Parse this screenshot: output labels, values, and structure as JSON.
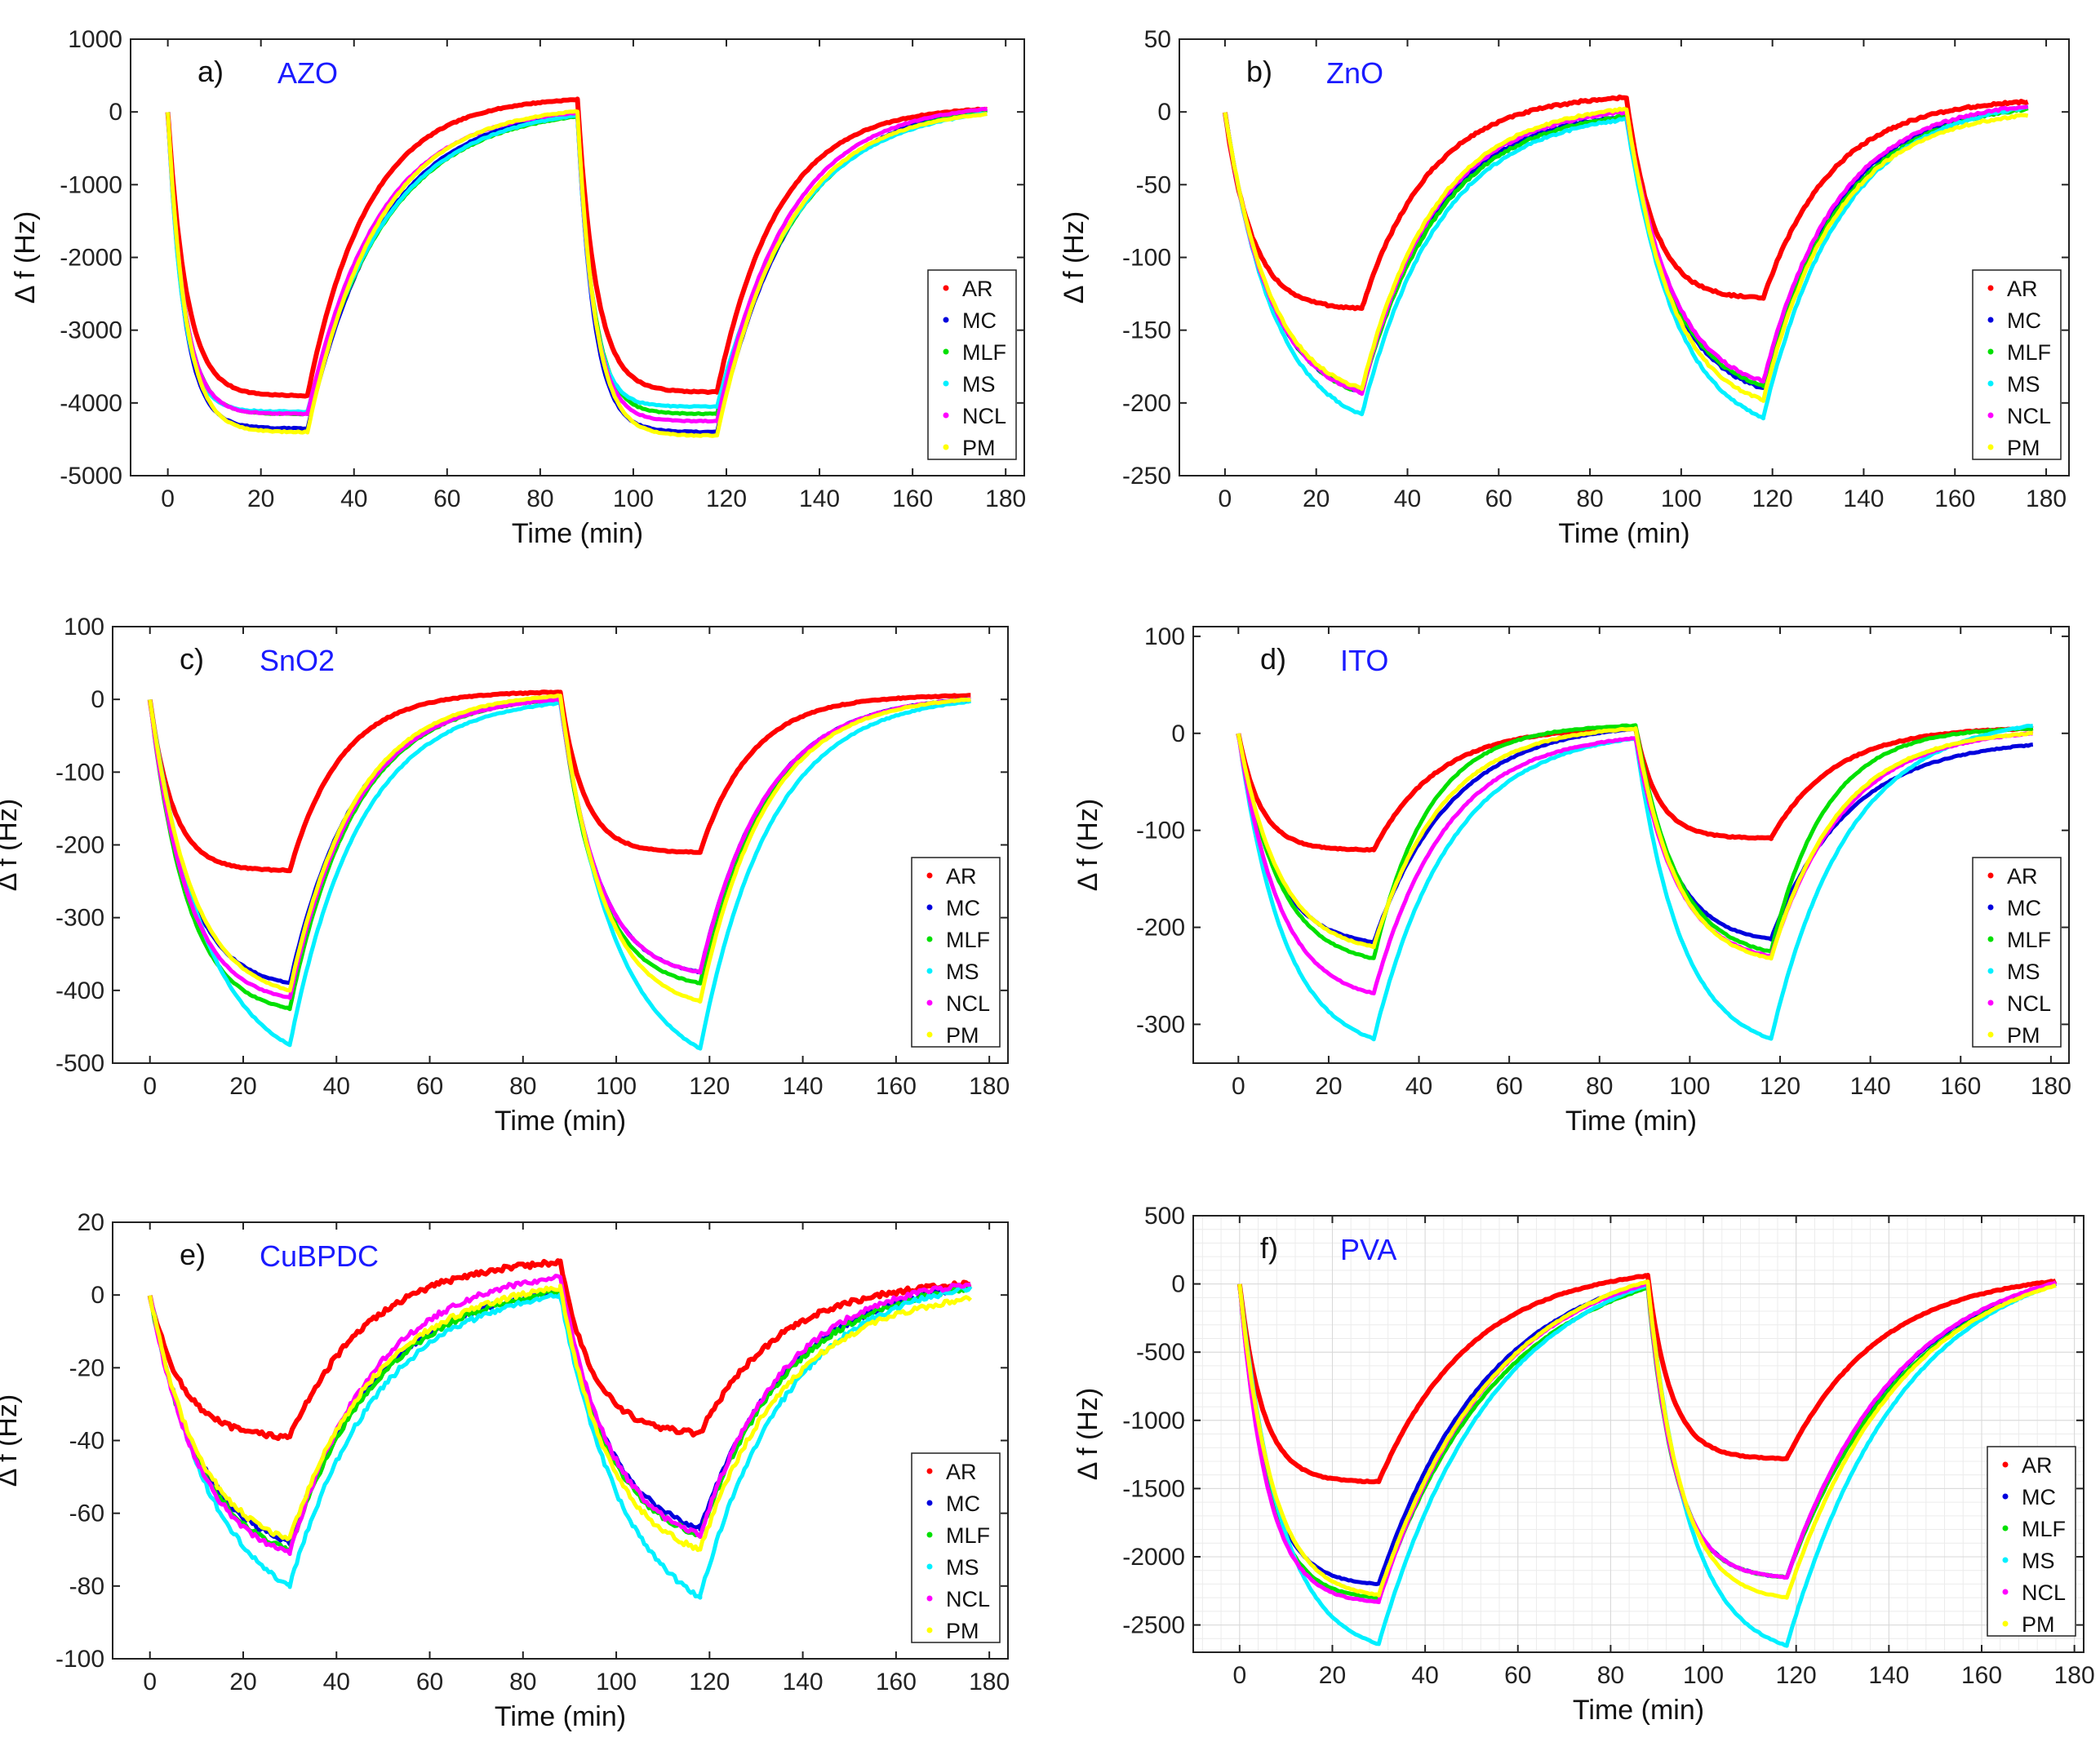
{
  "colors": {
    "AR": "#ff0000",
    "MC": "#0000dd",
    "MLF": "#00e000",
    "MS": "#00f0ff",
    "NCL": "#ff00ff",
    "PM": "#ffff00",
    "label": "#1a1aff"
  },
  "chart_data": [
    {
      "type": "line",
      "panel": "a)",
      "material": "AZO",
      "xlabel": "Time (min)",
      "ylabel": "Δ f (Hz)",
      "xlim": [
        -8,
        184
      ],
      "ylim": [
        -5000,
        1000
      ],
      "xticks": [
        0,
        20,
        40,
        60,
        80,
        100,
        120,
        140,
        160,
        180
      ],
      "yticks": [
        1000,
        0,
        -1000,
        -2000,
        -3000,
        -4000,
        -5000
      ],
      "grid": false,
      "legend": [
        "AR",
        "MC",
        "MLF",
        "MS",
        "NCL",
        "PM"
      ],
      "legend_position": "right",
      "cycles": {
        "exposure_on": [
          0,
          88
        ],
        "exposure_off": [
          30,
          118
        ],
        "cycle_end": [
          88,
          176
        ]
      },
      "series": [
        {
          "name": "AR",
          "plateau": [
            -3900,
            -3850
          ],
          "recovery_end": [
            170,
            40
          ],
          "tau_ads": 4,
          "tau_des": 13
        },
        {
          "name": "MC",
          "plateau": [
            -4350,
            -4400
          ],
          "recovery_end": [
            -30,
            20
          ],
          "tau_ads": 3.5,
          "tau_des": 16
        },
        {
          "name": "MLF",
          "plateau": [
            -4150,
            -4150
          ],
          "recovery_end": [
            -60,
            10
          ],
          "tau_ads": 3.5,
          "tau_des": 17
        },
        {
          "name": "MS",
          "plateau": [
            -4120,
            -4050
          ],
          "recovery_end": [
            -50,
            -20
          ],
          "tau_ads": 3.2,
          "tau_des": 17
        },
        {
          "name": "NCL",
          "plateau": [
            -4150,
            -4250
          ],
          "recovery_end": [
            -10,
            40
          ],
          "tau_ads": 3.5,
          "tau_des": 15
        },
        {
          "name": "PM",
          "plateau": [
            -4400,
            -4450
          ],
          "recovery_end": [
            10,
            -30
          ],
          "tau_ads": 3.8,
          "tau_des": 15
        }
      ]
    },
    {
      "type": "line",
      "panel": "b)",
      "material": "ZnO",
      "xlabel": "Time (min)",
      "ylabel": "Δ f (Hz)",
      "xlim": [
        -10,
        185
      ],
      "ylim": [
        -250,
        50
      ],
      "xticks": [
        0,
        20,
        40,
        60,
        80,
        100,
        120,
        140,
        160,
        180
      ],
      "yticks": [
        50,
        0,
        -50,
        -100,
        -150,
        -200,
        -250
      ],
      "grid": false,
      "legend": [
        "AR",
        "MC",
        "MLF",
        "MS",
        "NCL",
        "PM"
      ],
      "legend_position": "right",
      "cycles": {
        "exposure_on": [
          0,
          88
        ],
        "exposure_off": [
          30,
          118
        ],
        "cycle_end": [
          88,
          176
        ]
      },
      "series": [
        {
          "name": "AR",
          "plateau": [
            -135,
            -128
          ],
          "recovery_end": [
            10,
            7
          ],
          "tau_ads": 6,
          "tau_des": 15
        },
        {
          "name": "MC",
          "plateau": [
            -193,
            -190
          ],
          "recovery_end": [
            -3,
            3
          ],
          "tau_ads": 10,
          "tau_des": 16
        },
        {
          "name": "MLF",
          "plateau": [
            -193,
            -188
          ],
          "recovery_end": [
            -3,
            2
          ],
          "tau_ads": 10,
          "tau_des": 17
        },
        {
          "name": "MS",
          "plateau": [
            -208,
            -210
          ],
          "recovery_end": [
            -5,
            3
          ],
          "tau_ads": 11,
          "tau_des": 17
        },
        {
          "name": "NCL",
          "plateau": [
            -193,
            -185
          ],
          "recovery_end": [
            0,
            4
          ],
          "tau_ads": 10,
          "tau_des": 16
        },
        {
          "name": "PM",
          "plateau": [
            -190,
            -198
          ],
          "recovery_end": [
            2,
            -2
          ],
          "tau_ads": 10,
          "tau_des": 16
        }
      ]
    },
    {
      "type": "line",
      "panel": "c)",
      "material": "SnO2",
      "xlabel": "Time (min)",
      "ylabel": "Δ f (Hz)",
      "xlim": [
        -8,
        184
      ],
      "ylim": [
        -500,
        100
      ],
      "xticks": [
        0,
        20,
        40,
        60,
        80,
        100,
        120,
        140,
        160,
        180
      ],
      "yticks": [
        100,
        0,
        -100,
        -200,
        -300,
        -400,
        -500
      ],
      "grid": false,
      "legend": [
        "AR",
        "MC",
        "MLF",
        "MS",
        "NCL",
        "PM"
      ],
      "legend_position": "right",
      "cycles": {
        "exposure_on": [
          0,
          88
        ],
        "exposure_off": [
          30,
          118
        ],
        "cycle_end": [
          88,
          176
        ]
      },
      "series": [
        {
          "name": "AR",
          "plateau": [
            -235,
            -210
          ],
          "recovery_end": [
            10,
            5
          ],
          "tau_ads": 5,
          "tau_des": 11
        },
        {
          "name": "MC",
          "plateau": [
            -390,
            -375
          ],
          "recovery_end": [
            0,
            0
          ],
          "tau_ads": 8,
          "tau_des": 14
        },
        {
          "name": "MLF",
          "plateau": [
            -425,
            -390
          ],
          "recovery_end": [
            0,
            0
          ],
          "tau_ads": 8,
          "tau_des": 14
        },
        {
          "name": "MS",
          "plateau": [
            -475,
            -480
          ],
          "recovery_end": [
            -5,
            -3
          ],
          "tau_ads": 12,
          "tau_des": 15
        },
        {
          "name": "NCL",
          "plateau": [
            -410,
            -375
          ],
          "recovery_end": [
            0,
            0
          ],
          "tau_ads": 8,
          "tau_des": 14
        },
        {
          "name": "PM",
          "plateau": [
            -400,
            -415
          ],
          "recovery_end": [
            5,
            0
          ],
          "tau_ads": 9,
          "tau_des": 14
        }
      ]
    },
    {
      "type": "line",
      "panel": "d)",
      "material": "ITO",
      "xlabel": "Time (min)",
      "ylabel": "Δ f (Hz)",
      "xlim": [
        -10,
        184
      ],
      "ylim": [
        -340,
        110
      ],
      "xticks": [
        0,
        20,
        40,
        60,
        80,
        100,
        120,
        140,
        160,
        180
      ],
      "yticks": [
        100,
        0,
        -100,
        -200,
        -300
      ],
      "grid": false,
      "legend": [
        "AR",
        "MC",
        "MLF",
        "MS",
        "NCL",
        "PM"
      ],
      "legend_position": "right",
      "cycles": {
        "exposure_on": [
          0,
          88
        ],
        "exposure_off": [
          30,
          118
        ],
        "cycle_end": [
          88,
          176
        ]
      },
      "series": [
        {
          "name": "AR",
          "plateau": [
            -120,
            -108
          ],
          "recovery_end": [
            5,
            5
          ],
          "tau_ads": 5,
          "tau_des": 14
        },
        {
          "name": "MC",
          "plateau": [
            -215,
            -212
          ],
          "recovery_end": [
            5,
            -12
          ],
          "tau_ads": 8,
          "tau_des": 17
        },
        {
          "name": "MLF",
          "plateau": [
            -232,
            -225
          ],
          "recovery_end": [
            8,
            5
          ],
          "tau_ads": 9,
          "tau_des": 12
        },
        {
          "name": "MS",
          "plateau": [
            -315,
            -315
          ],
          "recovery_end": [
            -5,
            8
          ],
          "tau_ads": 10,
          "tau_des": 17
        },
        {
          "name": "NCL",
          "plateau": [
            -268,
            -230
          ],
          "recovery_end": [
            -5,
            0
          ],
          "tau_ads": 9,
          "tau_des": 16
        },
        {
          "name": "PM",
          "plateau": [
            -220,
            -232
          ],
          "recovery_end": [
            5,
            0
          ],
          "tau_ads": 9,
          "tau_des": 15
        }
      ]
    },
    {
      "type": "line",
      "panel": "e)",
      "material": "CuBPDC",
      "xlabel": "Time (min)",
      "ylabel": "Δ f (Hz)",
      "xlim": [
        -8,
        184
      ],
      "ylim": [
        -100,
        20
      ],
      "xticks": [
        0,
        20,
        40,
        60,
        80,
        100,
        120,
        140,
        160,
        180
      ],
      "yticks": [
        20,
        0,
        -20,
        -40,
        -60,
        -80,
        -100
      ],
      "grid": false,
      "legend": [
        "AR",
        "MC",
        "MLF",
        "MS",
        "NCL",
        "PM"
      ],
      "legend_position": "right",
      "cycles": {
        "exposure_on": [
          0,
          88
        ],
        "exposure_off": [
          30,
          118
        ],
        "cycle_end": [
          88,
          176
        ]
      },
      "series": [
        {
          "name": "AR",
          "plateau": [
            -39,
            -38
          ],
          "recovery_end": [
            9,
            3
          ],
          "tau_ads": 7,
          "tau_des": 17
        },
        {
          "name": "MC",
          "plateau": [
            -68,
            -64
          ],
          "recovery_end": [
            1,
            2
          ],
          "tau_ads": 11,
          "tau_des": 19
        },
        {
          "name": "MLF",
          "plateau": [
            -70,
            -66
          ],
          "recovery_end": [
            1,
            2
          ],
          "tau_ads": 11,
          "tau_des": 19
        },
        {
          "name": "MS",
          "plateau": [
            -80,
            -83
          ],
          "recovery_end": [
            0,
            2
          ],
          "tau_ads": 14,
          "tau_des": 19
        },
        {
          "name": "NCL",
          "plateau": [
            -71,
            -66
          ],
          "recovery_end": [
            5,
            3
          ],
          "tau_ads": 11,
          "tau_des": 18
        },
        {
          "name": "PM",
          "plateau": [
            -67,
            -70
          ],
          "recovery_end": [
            2,
            -1
          ],
          "tau_ads": 11,
          "tau_des": 19
        }
      ]
    },
    {
      "type": "line",
      "panel": "f)",
      "material": "PVA",
      "xlabel": "Time (min)",
      "ylabel": "Δ f (Hz)",
      "xlim": [
        -10,
        182
      ],
      "ylim": [
        -2700,
        500
      ],
      "xticks": [
        0,
        20,
        40,
        60,
        80,
        100,
        120,
        140,
        160,
        180
      ],
      "xtick_labels": [
        "0",
        "20",
        "40",
        "60",
        "80",
        "100",
        "120",
        "140",
        "160",
        "180"
      ],
      "yticks": [
        500,
        0,
        -500,
        -1000,
        -1500,
        -2000,
        -2500
      ],
      "grid": true,
      "legend": [
        "AR",
        "MC",
        "MLF",
        "MS",
        "NCL",
        "PM"
      ],
      "legend_position": "right",
      "cycles": {
        "exposure_on": [
          0,
          88
        ],
        "exposure_off": [
          30,
          118
        ],
        "cycle_end": [
          88,
          176
        ]
      },
      "series": [
        {
          "name": "AR",
          "plateau": [
            -1450,
            -1280
          ],
          "recovery_end": [
            60,
            20
          ],
          "tau_ads": 5,
          "tau_des": 20
        },
        {
          "name": "MC",
          "plateau": [
            -2200,
            -2150
          ],
          "recovery_end": [
            10,
            0
          ],
          "tau_ads": 6,
          "tau_des": 24
        },
        {
          "name": "MLF",
          "plateau": [
            -2300,
            -2150
          ],
          "recovery_end": [
            -30,
            -10
          ],
          "tau_ads": 6,
          "tau_des": 26
        },
        {
          "name": "MS",
          "plateau": [
            -2640,
            -2650
          ],
          "recovery_end": [
            -10,
            0
          ],
          "tau_ads": 9,
          "tau_des": 25
        },
        {
          "name": "NCL",
          "plateau": [
            -2330,
            -2150
          ],
          "recovery_end": [
            0,
            10
          ],
          "tau_ads": 6,
          "tau_des": 24
        },
        {
          "name": "PM",
          "plateau": [
            -2280,
            -2300
          ],
          "recovery_end": [
            20,
            -10
          ],
          "tau_ads": 7,
          "tau_des": 25
        }
      ]
    }
  ]
}
